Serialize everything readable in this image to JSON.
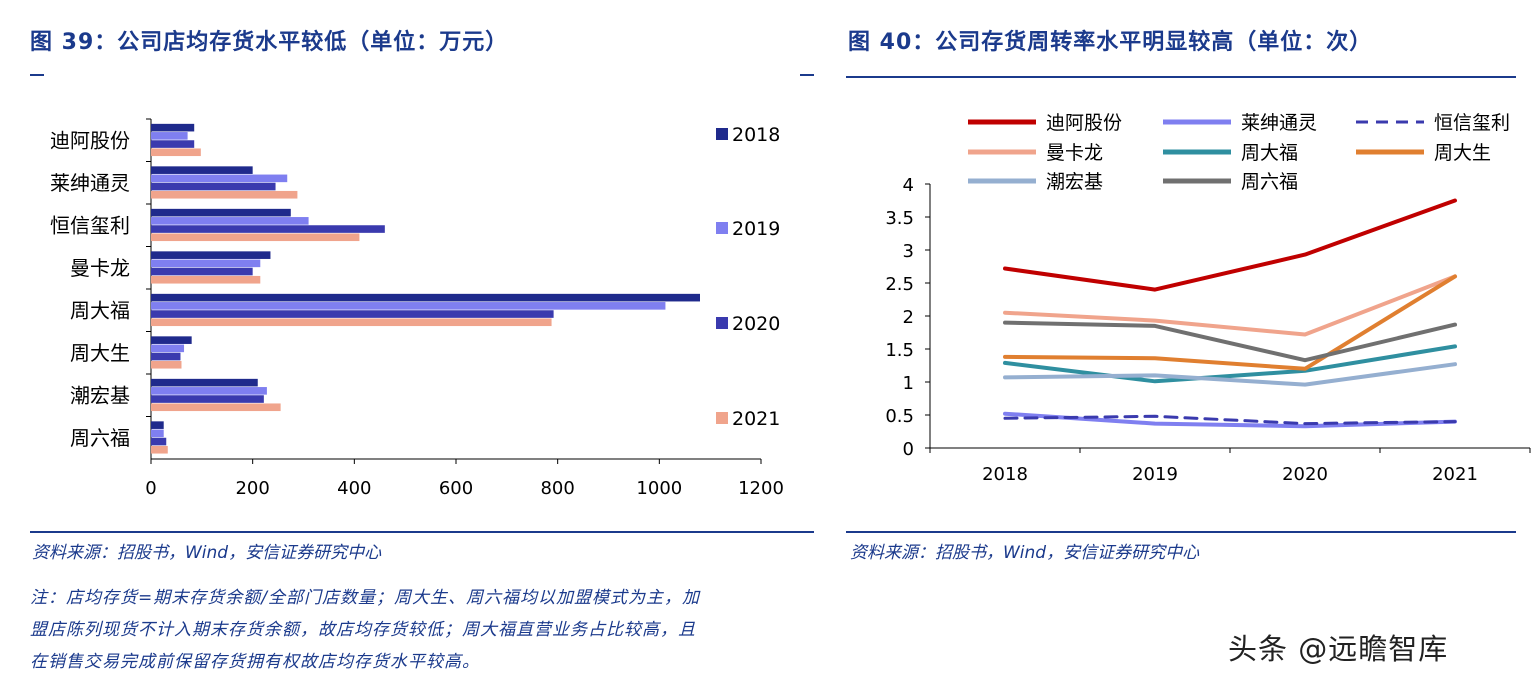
{
  "left_panel": {
    "title": "图 39：公司店均存货水平较低（单位：万元）",
    "source": "资料来源：招股书，Wind，安信证券研究中心",
    "note_lines": [
      "注：店均存货=期末存货余额/全部门店数量；周大生、周六福均以加盟模式为主，加",
      "盟店陈列现货不计入期末存货余额，故店均存货较低；周大福直营业务占比较高，且",
      "在销售交易完成前保留存货拥有权故店均存货水平较高。"
    ]
  },
  "right_panel": {
    "title": "图 40：公司存货周转率水平明显较高（单位：次）",
    "source": "资料来源：招股书，Wind，安信证券研究中心"
  },
  "watermark": "头条 @远瞻智库",
  "chart_data": [
    {
      "type": "bar",
      "orientation": "horizontal",
      "categories": [
        "迪阿股份",
        "莱绅通灵",
        "恒信玺利",
        "曼卡龙",
        "周大福",
        "周大生",
        "潮宏基",
        "周六福"
      ],
      "series": [
        {
          "name": "2018",
          "color": "#1f2a8c",
          "values": [
            85,
            200,
            275,
            235,
            1080,
            80,
            210,
            25
          ]
        },
        {
          "name": "2019",
          "color": "#7f7ff0",
          "values": [
            72,
            268,
            310,
            215,
            1012,
            65,
            228,
            25
          ]
        },
        {
          "name": "2020",
          "color": "#3a3aae",
          "values": [
            85,
            245,
            460,
            200,
            792,
            58,
            222,
            30
          ]
        },
        {
          "name": "2021",
          "color": "#f0a48c",
          "values": [
            98,
            288,
            410,
            215,
            788,
            60,
            255,
            33
          ]
        }
      ],
      "xlim": [
        0,
        1200
      ],
      "x_ticks": [
        "0",
        "200",
        "400",
        "600",
        "800",
        "1000",
        "1200"
      ],
      "legend_position": "right"
    },
    {
      "type": "line",
      "x": [
        "2018",
        "2019",
        "2020",
        "2021"
      ],
      "series": [
        {
          "name": "迪阿股份",
          "color": "#c00000",
          "dash": false,
          "values": [
            2.72,
            2.4,
            2.93,
            3.75
          ]
        },
        {
          "name": "莱绅通灵",
          "color": "#7f7ff0",
          "dash": false,
          "values": [
            0.52,
            0.37,
            0.33,
            0.4
          ]
        },
        {
          "name": "恒信玺利",
          "color": "#3a3aae",
          "dash": true,
          "values": [
            0.45,
            0.48,
            0.37,
            0.4
          ]
        },
        {
          "name": "曼卡龙",
          "color": "#f0a48c",
          "dash": false,
          "values": [
            2.05,
            1.93,
            1.72,
            2.6
          ]
        },
        {
          "name": "周大福",
          "color": "#2f8fa0",
          "dash": false,
          "values": [
            1.29,
            1.01,
            1.17,
            1.54
          ]
        },
        {
          "name": "周大生",
          "color": "#e07f30",
          "dash": false,
          "values": [
            1.38,
            1.36,
            1.2,
            2.6
          ]
        },
        {
          "name": "潮宏基",
          "color": "#95afd0",
          "dash": false,
          "values": [
            1.07,
            1.1,
            0.96,
            1.27
          ]
        },
        {
          "name": "周六福",
          "color": "#707070",
          "dash": false,
          "values": [
            1.9,
            1.85,
            1.33,
            1.87
          ]
        }
      ],
      "ylim": [
        0,
        4
      ],
      "y_ticks": [
        "0",
        "0.5",
        "1",
        "1.5",
        "2",
        "2.5",
        "3",
        "3.5",
        "4"
      ],
      "legend_position": "top"
    }
  ]
}
